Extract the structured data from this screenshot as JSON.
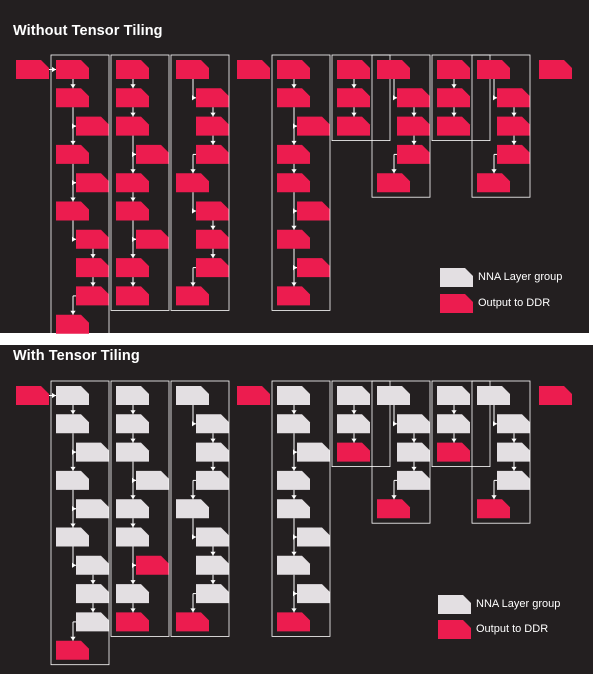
{
  "colors": {
    "background": "#231f20",
    "nna_layer_group": "#e3dfe2",
    "output_to_ddr": "#ec1c4f",
    "connector": "#ffffff"
  },
  "top_panel": {
    "title": "Without Tensor Tiling",
    "legend": [
      {
        "label": "NNA Layer group",
        "color": "#e3dfe2"
      },
      {
        "label": "Output to DDR",
        "color": "#ec1c4f"
      }
    ]
  },
  "bottom_panel": {
    "title": "With Tensor Tiling",
    "legend": [
      {
        "label": "NNA Layer group",
        "color": "#e3dfe2"
      },
      {
        "label": "Output to DDR",
        "color": "#ec1c4f"
      }
    ]
  }
}
